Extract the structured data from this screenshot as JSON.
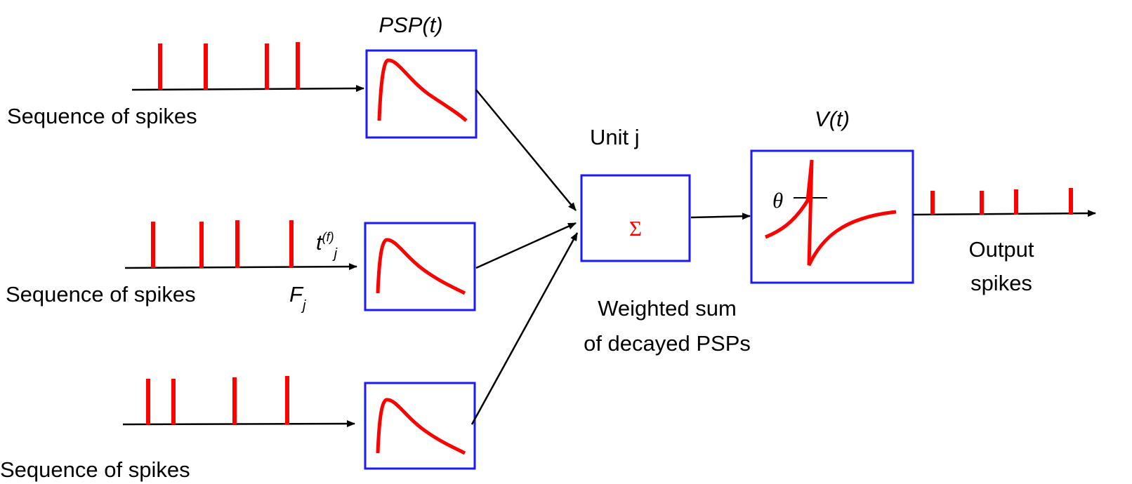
{
  "inputs": [
    {
      "label": "Sequence of spikes"
    },
    {
      "label": "Sequence of spikes",
      "set_label": {
        "base": "F",
        "sub": "j"
      },
      "spike_label": {
        "base": "t",
        "sup": "(f)",
        "sub": "j"
      }
    },
    {
      "label": "Sequence of spikes"
    }
  ],
  "psp_label": "PSP(t)",
  "unit_label": "Unit j",
  "sum_symbol": "Σ",
  "sum_caption": [
    "Weighted sum",
    "of decayed PSPs"
  ],
  "potential_label": "V(t)",
  "threshold_symbol": "θ",
  "output_label": [
    "Output",
    "spikes"
  ]
}
